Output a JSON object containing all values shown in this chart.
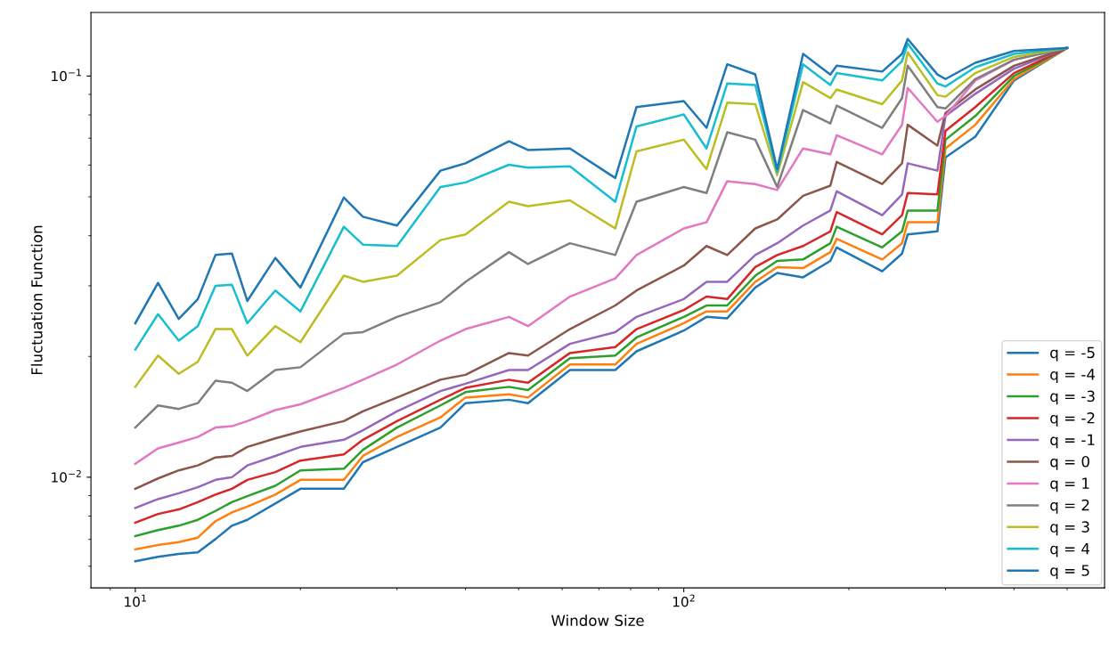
{
  "chart_data": {
    "type": "line",
    "xlabel": "Window Size",
    "ylabel": "Fluctuation Function",
    "log": "xy",
    "grid": false,
    "legend": "bottom right",
    "marker": "none",
    "line_style": "solid",
    "x": [
      10,
      11,
      12,
      13,
      14,
      15,
      16,
      18,
      20,
      24,
      26,
      30,
      36,
      40,
      48,
      52,
      62,
      75,
      82,
      100,
      110,
      120,
      135,
      148,
      165,
      185,
      190,
      230,
      250,
      256,
      290,
      300,
      340,
      400,
      500
    ],
    "xlim": [
      8.3,
      585
    ],
    "ylim": [
      0.0053,
      0.144
    ],
    "xticks": [
      {
        "value": 10,
        "label": "10$^{1}$"
      },
      {
        "value": 100,
        "label": "10$^{2}$"
      }
    ],
    "yticks": [
      {
        "value": 0.01,
        "label": "10$^{−2}$"
      },
      {
        "value": 0.1,
        "label": "10$^{−1}$"
      }
    ],
    "series": [
      {
        "name": "q = -5",
        "color": "#1f77b4",
        "values": [
          0.00617,
          0.00633,
          0.00644,
          0.0065,
          0.00701,
          0.00757,
          0.00783,
          0.0086,
          0.00936,
          0.00936,
          0.0109,
          0.0119,
          0.0133,
          0.0153,
          0.0156,
          0.0153,
          0.0185,
          0.0185,
          0.0206,
          0.0232,
          0.0251,
          0.0249,
          0.0297,
          0.0323,
          0.0315,
          0.0346,
          0.0374,
          0.0326,
          0.0361,
          0.0403,
          0.041,
          0.0627,
          0.0706,
          0.0975,
          0.1175
        ]
      },
      {
        "name": "q = -4",
        "color": "#ff7f0e",
        "values": [
          0.00661,
          0.00678,
          0.00689,
          0.00707,
          0.00777,
          0.00817,
          0.00845,
          0.00905,
          0.00985,
          0.00985,
          0.0113,
          0.0126,
          0.0141,
          0.0158,
          0.0161,
          0.0158,
          0.0191,
          0.0191,
          0.0215,
          0.0242,
          0.0259,
          0.0259,
          0.0307,
          0.0334,
          0.0332,
          0.0364,
          0.0393,
          0.0349,
          0.0383,
          0.0432,
          0.0432,
          0.066,
          0.0756,
          0.0983,
          0.1175
        ]
      },
      {
        "name": "q = -3",
        "color": "#2ca02c",
        "values": [
          0.00713,
          0.00738,
          0.00757,
          0.00783,
          0.00824,
          0.00867,
          0.00897,
          0.00952,
          0.0104,
          0.0105,
          0.0117,
          0.0133,
          0.0151,
          0.0163,
          0.0168,
          0.0165,
          0.0198,
          0.0201,
          0.0223,
          0.0251,
          0.0268,
          0.0268,
          0.0318,
          0.0346,
          0.0349,
          0.0383,
          0.0421,
          0.0374,
          0.041,
          0.0462,
          0.0462,
          0.0694,
          0.0795,
          0.1,
          0.1175
        ]
      },
      {
        "name": "q = -2",
        "color": "#d62728",
        "values": [
          0.0077,
          0.0081,
          0.00831,
          0.00867,
          0.00905,
          0.00936,
          0.00985,
          0.0103,
          0.011,
          0.0114,
          0.0124,
          0.0138,
          0.0156,
          0.0167,
          0.0175,
          0.0172,
          0.0204,
          0.0211,
          0.0234,
          0.0261,
          0.0282,
          0.0278,
          0.0334,
          0.0358,
          0.0377,
          0.041,
          0.0458,
          0.0403,
          0.045,
          0.0511,
          0.0507,
          0.073,
          0.0837,
          0.1017,
          0.1175
        ]
      },
      {
        "name": "q = -1",
        "color": "#9467bd",
        "values": [
          0.00838,
          0.00882,
          0.00912,
          0.00944,
          0.00985,
          0.01,
          0.0107,
          0.0113,
          0.0119,
          0.0124,
          0.0131,
          0.0146,
          0.0164,
          0.0171,
          0.0185,
          0.0185,
          0.0215,
          0.023,
          0.0251,
          0.0278,
          0.0307,
          0.0307,
          0.0358,
          0.0383,
          0.0424,
          0.0462,
          0.0516,
          0.045,
          0.0507,
          0.0606,
          0.0581,
          0.0795,
          0.0903,
          0.1043,
          0.1175
        ]
      },
      {
        "name": "q = 0",
        "color": "#8c564b",
        "values": [
          0.00936,
          0.00993,
          0.0104,
          0.0107,
          0.0112,
          0.0113,
          0.0119,
          0.0125,
          0.013,
          0.0138,
          0.0146,
          0.0158,
          0.0175,
          0.018,
          0.0204,
          0.0201,
          0.0234,
          0.0268,
          0.0292,
          0.0337,
          0.0377,
          0.0358,
          0.0417,
          0.0439,
          0.0503,
          0.0533,
          0.0611,
          0.0538,
          0.0606,
          0.0756,
          0.0671,
          0.0809,
          0.0926,
          0.1061,
          0.1175
        ]
      },
      {
        "name": "q = 1",
        "color": "#e377c2",
        "values": [
          0.0108,
          0.0118,
          0.0122,
          0.0126,
          0.0133,
          0.0134,
          0.0138,
          0.0147,
          0.0152,
          0.0167,
          0.0175,
          0.0191,
          0.0219,
          0.0234,
          0.0251,
          0.0238,
          0.0282,
          0.0313,
          0.0358,
          0.0417,
          0.0432,
          0.0547,
          0.0538,
          0.052,
          0.066,
          0.0638,
          0.0712,
          0.0638,
          0.0756,
          0.0934,
          0.0769,
          0.0795,
          0.0975,
          0.1098,
          0.1175
        ]
      },
      {
        "name": "q = 2",
        "color": "#7f7f7f",
        "values": [
          0.0133,
          0.0151,
          0.0148,
          0.0153,
          0.0174,
          0.0172,
          0.0164,
          0.0185,
          0.0188,
          0.0228,
          0.023,
          0.0251,
          0.0273,
          0.0307,
          0.0364,
          0.034,
          0.0383,
          0.0358,
          0.0486,
          0.0529,
          0.0511,
          0.0724,
          0.0694,
          0.0529,
          0.0823,
          0.0762,
          0.0844,
          0.0743,
          0.0881,
          0.1061,
          0.0837,
          0.083,
          0.0983,
          0.1098,
          0.1175
        ]
      },
      {
        "name": "q = 3",
        "color": "#bcbd22",
        "values": [
          0.0168,
          0.0201,
          0.0181,
          0.0194,
          0.0234,
          0.0234,
          0.0201,
          0.0238,
          0.0217,
          0.0318,
          0.0307,
          0.0318,
          0.039,
          0.0403,
          0.0486,
          0.0474,
          0.049,
          0.0417,
          0.0649,
          0.0694,
          0.0586,
          0.0858,
          0.0851,
          0.0566,
          0.0966,
          0.0881,
          0.0926,
          0.0851,
          0.0975,
          0.1146,
          0.0896,
          0.0888,
          0.1017,
          0.1116,
          0.1175
        ]
      },
      {
        "name": "q = 4",
        "color": "#17becf",
        "values": [
          0.0208,
          0.0255,
          0.0219,
          0.0238,
          0.03,
          0.0302,
          0.0242,
          0.0292,
          0.0259,
          0.0421,
          0.038,
          0.0377,
          0.0529,
          0.0543,
          0.0601,
          0.0591,
          0.0596,
          0.0486,
          0.0749,
          0.0802,
          0.066,
          0.0958,
          0.095,
          0.0576,
          0.107,
          0.095,
          0.1017,
          0.0975,
          0.1089,
          0.1205,
          0.0958,
          0.0942,
          0.1052,
          0.1136,
          0.1175
        ]
      },
      {
        "name": "q = 5",
        "color": "#1f77b4",
        "values": [
          0.0242,
          0.0305,
          0.0248,
          0.0278,
          0.0358,
          0.0361,
          0.0275,
          0.0352,
          0.0297,
          0.0498,
          0.0446,
          0.0424,
          0.0581,
          0.0606,
          0.0688,
          0.0654,
          0.066,
          0.0557,
          0.0837,
          0.0866,
          0.0743,
          0.107,
          0.101,
          0.0586,
          0.1136,
          0.1009,
          0.1061,
          0.1026,
          0.1136,
          0.1237,
          0.1009,
          0.0983,
          0.1079,
          0.1155,
          0.1175
        ]
      }
    ]
  }
}
